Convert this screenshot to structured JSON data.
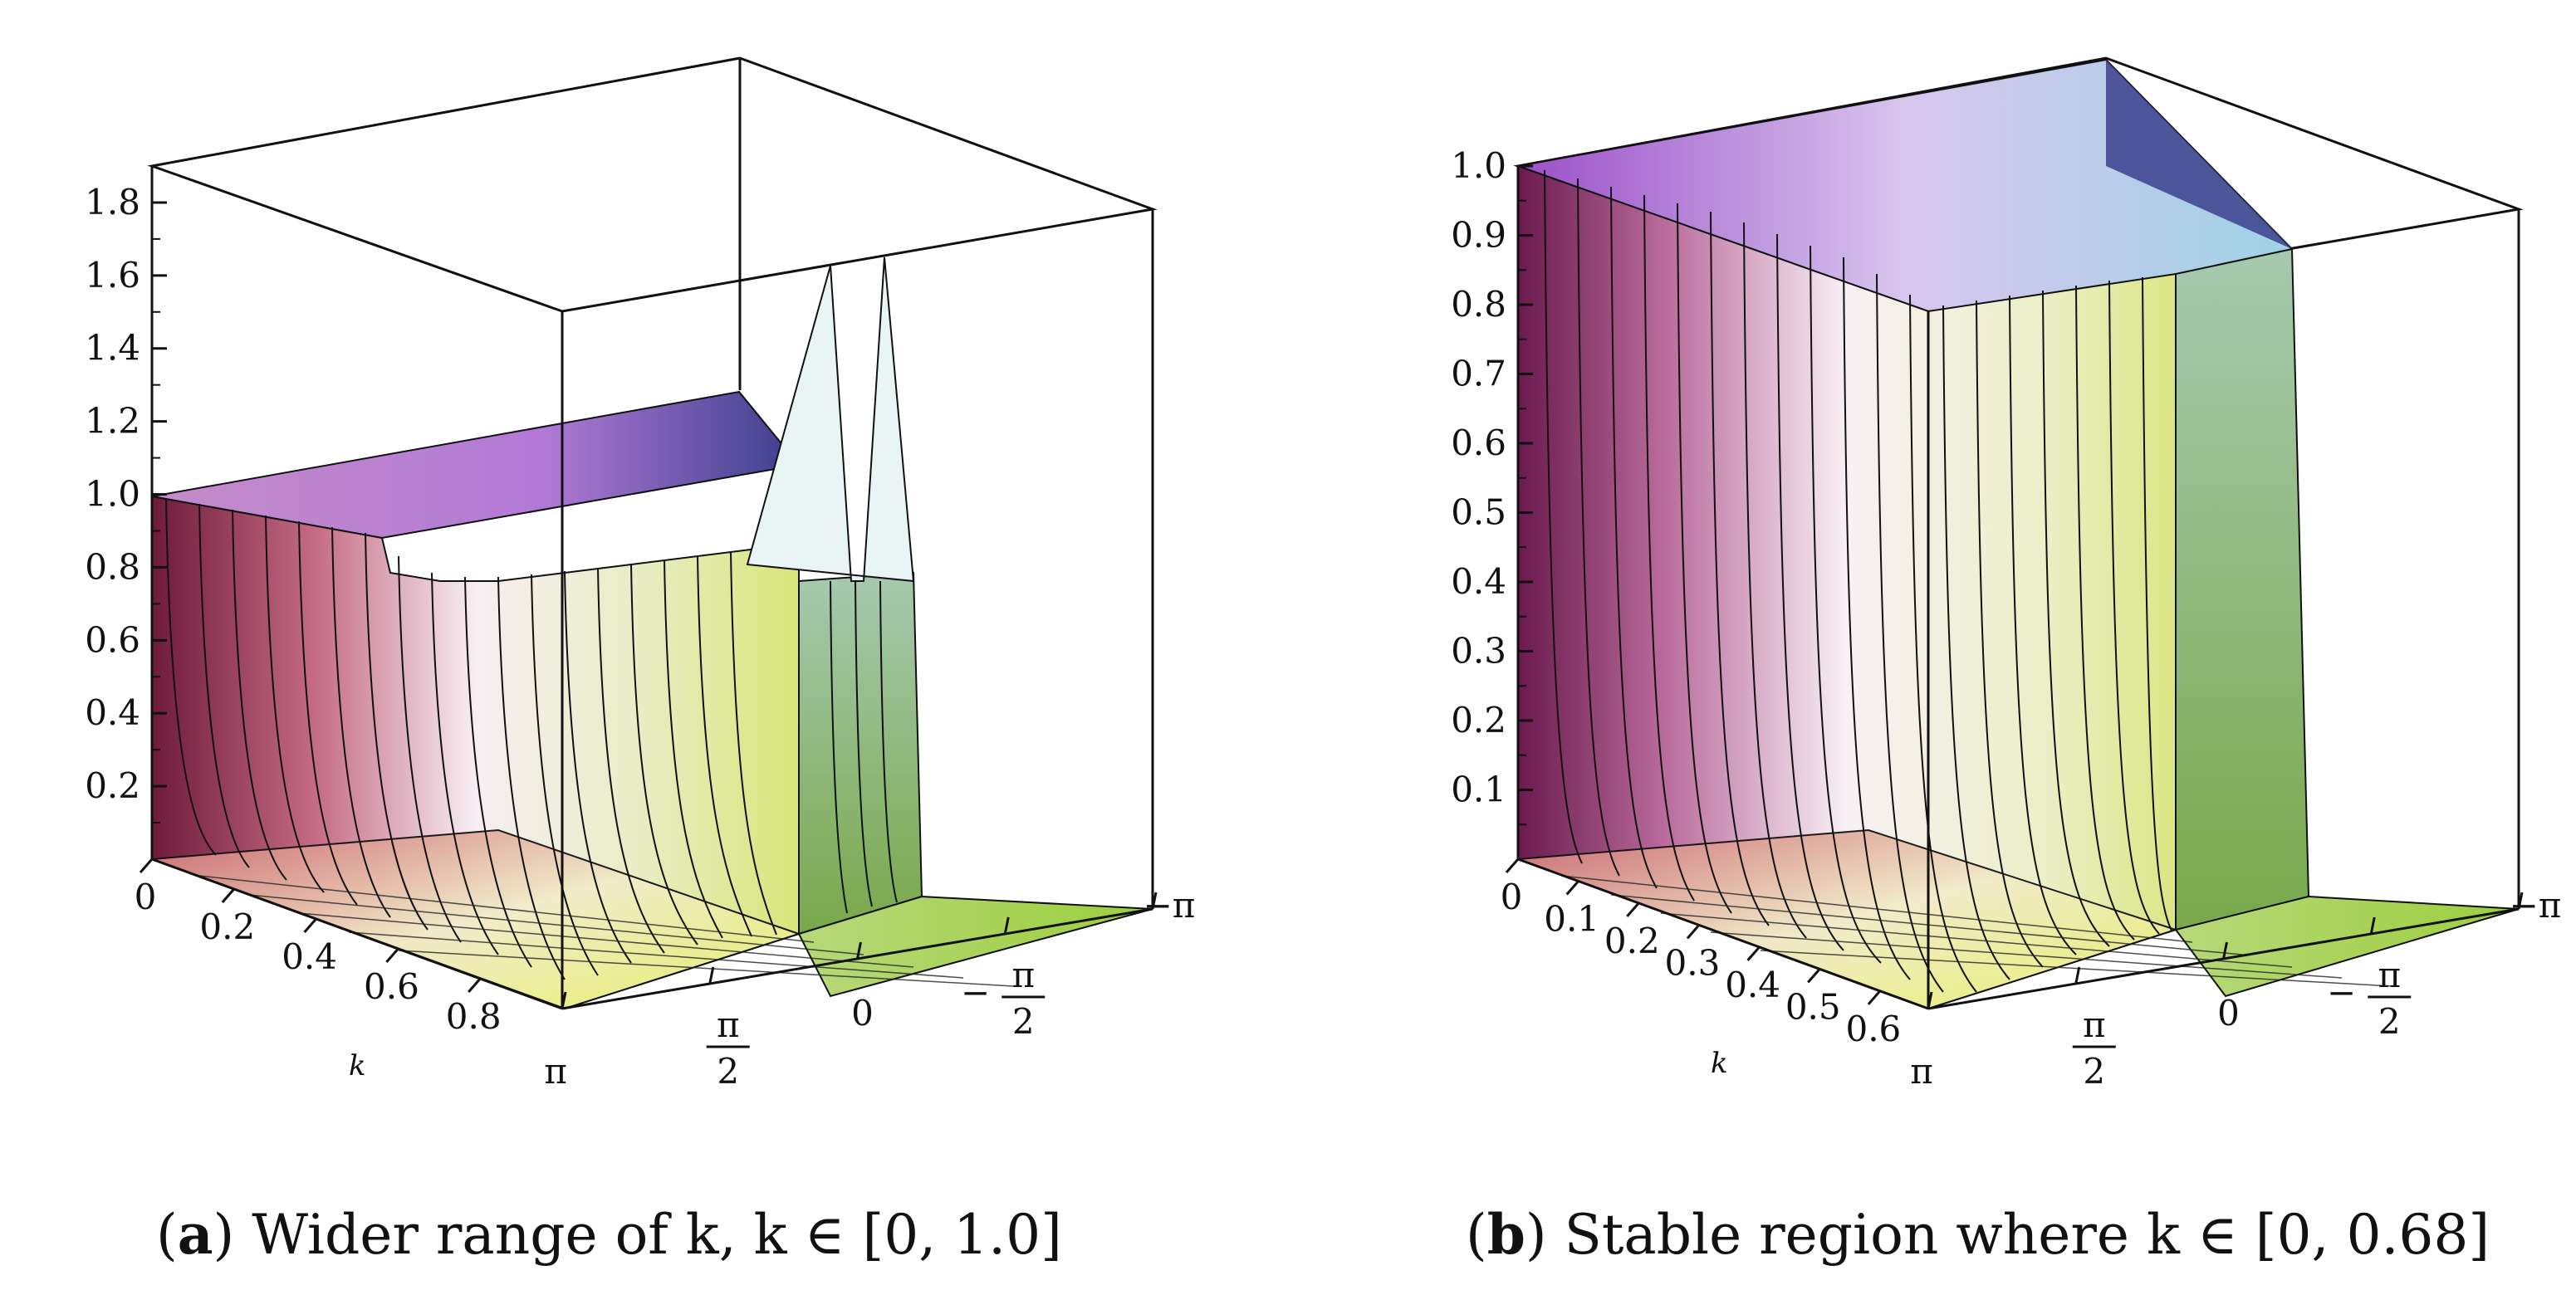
{
  "chart_data": [
    {
      "type": "surface3d",
      "panel": "a",
      "caption_letter": "a",
      "caption_text": "Wider range of k, k ∈ [0, 1.0]",
      "title": "",
      "z_ticks": [
        "0.2",
        "0.4",
        "0.6",
        "0.8",
        "1.0",
        "1.2",
        "1.4",
        "1.6",
        "1.8"
      ],
      "z_tick_values": [
        0.2,
        0.4,
        0.6,
        0.8,
        1.0,
        1.2,
        1.4,
        1.6,
        1.8
      ],
      "zlim": [
        0,
        1.9
      ],
      "k_ticks": [
        "0",
        "0.2",
        "0.4",
        "0.6",
        "0.8"
      ],
      "k_tick_values": [
        0,
        0.2,
        0.4,
        0.6,
        0.8
      ],
      "klim": [
        0,
        1.0
      ],
      "k_label": "k",
      "theta_ticks": [
        "π",
        "π/2",
        "0",
        "−π/2",
        "−π"
      ],
      "theta_tick_values": [
        3.1416,
        1.5708,
        0,
        -1.5708,
        -3.1416
      ],
      "plateau_value": 1.0,
      "peaks": [
        {
          "theta": 0.35,
          "k": 0.95,
          "z": 1.65
        },
        {
          "theta": -0.35,
          "k": 0.95,
          "z": 1.65
        }
      ],
      "colors": {
        "low_k": "#7a1f3d",
        "mid": "#f6eef2",
        "high_theta": "#8fc04a",
        "accent": "#b98ad8"
      }
    },
    {
      "type": "surface3d",
      "panel": "b",
      "caption_letter": "b",
      "caption_text": "Stable region where k ∈ [0, 0.68]",
      "title": "",
      "z_ticks": [
        "0.1",
        "0.2",
        "0.3",
        "0.4",
        "0.5",
        "0.6",
        "0.7",
        "0.8",
        "0.9",
        "1.0"
      ],
      "z_tick_values": [
        0.1,
        0.2,
        0.3,
        0.4,
        0.5,
        0.6,
        0.7,
        0.8,
        0.9,
        1.0
      ],
      "zlim": [
        0,
        1.0
      ],
      "k_ticks": [
        "0",
        "0.1",
        "0.2",
        "0.3",
        "0.4",
        "0.5",
        "0.6"
      ],
      "k_tick_values": [
        0,
        0.1,
        0.2,
        0.3,
        0.4,
        0.5,
        0.6
      ],
      "klim": [
        0,
        0.68
      ],
      "k_label": "k",
      "theta_ticks": [
        "π",
        "π/2",
        "0",
        "−π/2",
        "−π"
      ],
      "theta_tick_values": [
        3.1416,
        1.5708,
        0,
        -1.5708,
        -3.1416
      ],
      "plateau_value": 1.0,
      "peaks": [],
      "colors": {
        "low_k": "#6a1a4e",
        "mid": "#f6eef2",
        "high_theta": "#8fc04a",
        "accent": "#7a3fb8"
      }
    }
  ]
}
